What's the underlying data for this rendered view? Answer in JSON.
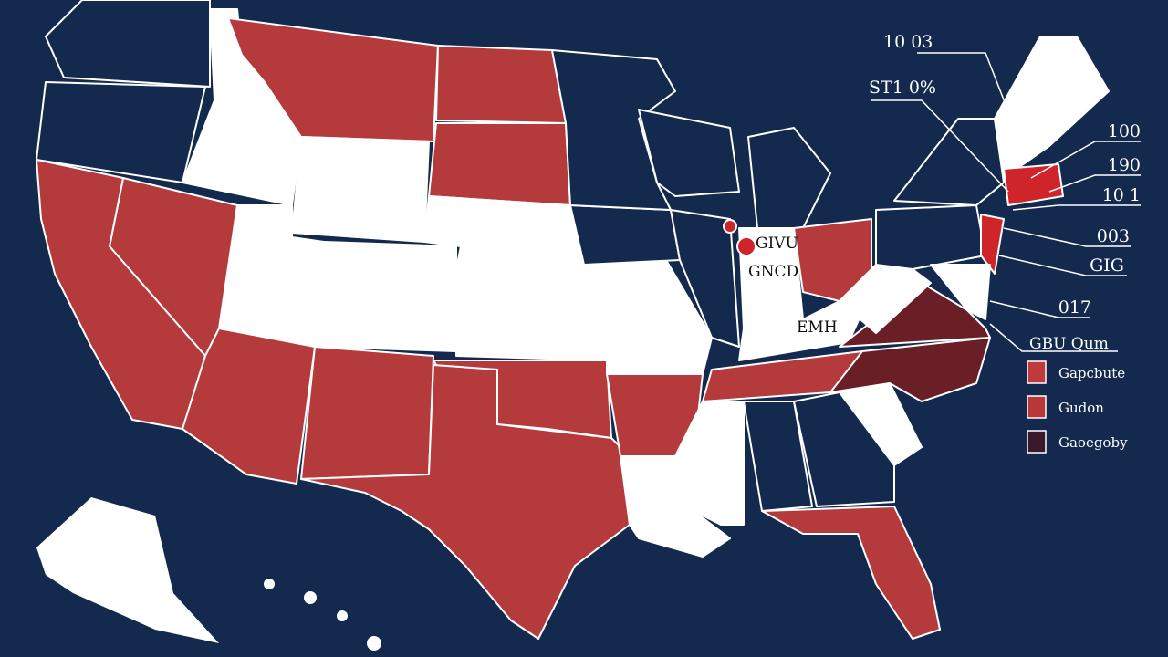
{
  "callouts": [
    "10 03",
    "ST1 0%",
    "100",
    "190",
    "10 1",
    "003",
    "GIG",
    "017"
  ],
  "map_labels": [
    "GIVU",
    "GNCD",
    "EMH"
  ],
  "legend": {
    "title": "GBU Qum",
    "items": [
      {
        "label": "Gapcbute",
        "color": "#c0393b"
      },
      {
        "label": "Gudon",
        "color": "#b8383a"
      },
      {
        "label": "Gaoegoby",
        "color": "#3a1a2a"
      }
    ]
  }
}
